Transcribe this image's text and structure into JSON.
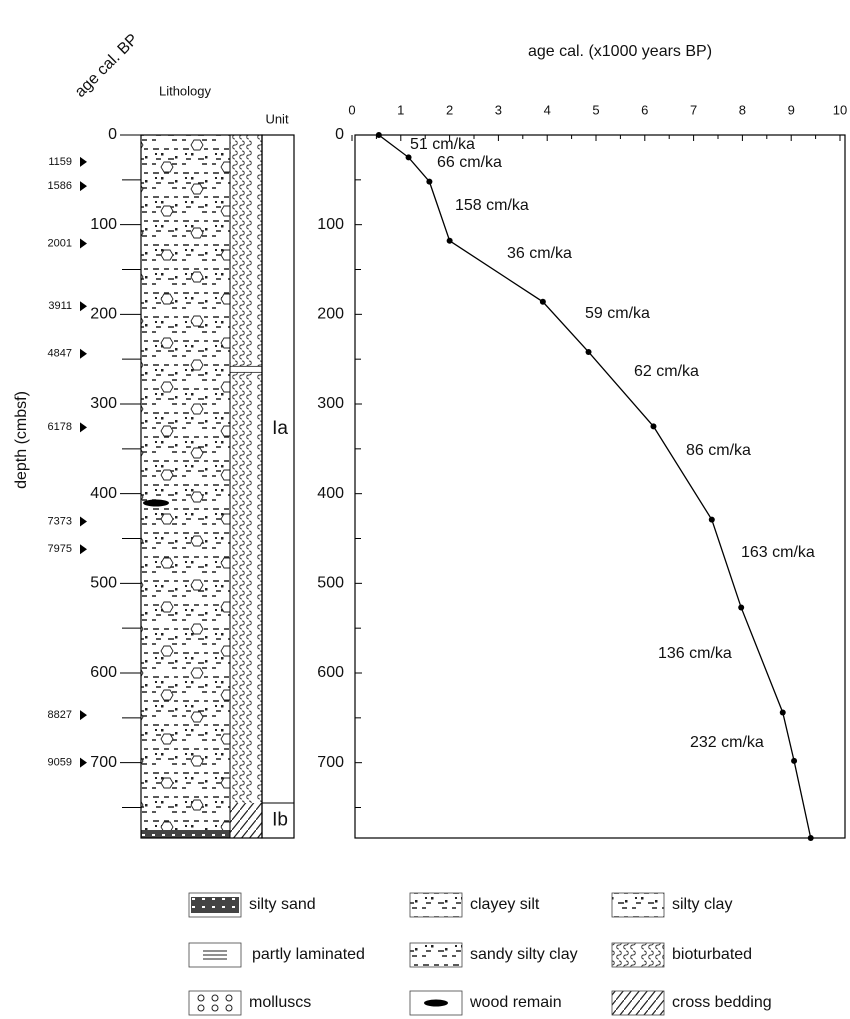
{
  "chart_data": {
    "type": "line",
    "title": "age cal. (x1000 years BP)",
    "y_label": "depth (cmbsf)",
    "x": [
      0.55,
      1.159,
      1.586,
      2.001,
      3.911,
      4.847,
      6.178,
      7.373,
      7.975,
      8.827,
      9.059,
      9.4
    ],
    "values": [
      0,
      25,
      52,
      118,
      186,
      242,
      325,
      429,
      527,
      644,
      698,
      784
    ],
    "color": "#000000",
    "xlim": [
      0,
      10
    ],
    "xticks": [
      0,
      1,
      2,
      3,
      4,
      5,
      6,
      7,
      8,
      9,
      10
    ],
    "ylim": [
      0,
      784
    ],
    "yticks": [
      0,
      100,
      200,
      300,
      400,
      500,
      600,
      700
    ],
    "segment_labels": [
      "51 cm/ka",
      "66 cm/ka",
      "158 cm/ka",
      "36 cm/ka",
      "59 cm/ka",
      "62 cm/ka",
      "86 cm/ka",
      "163 cm/ka",
      "136 cm/ka",
      "232 cm/ka"
    ]
  },
  "lithology": {
    "age_label": "age cal. BP",
    "title": "Lithology",
    "unit_label": "Unit",
    "age_markers": {
      "ages": [
        1159,
        1586,
        2001,
        3911,
        4847,
        6178,
        7373,
        7975,
        8827,
        9059
      ],
      "depths": [
        30,
        57,
        121,
        191,
        244,
        326,
        431,
        462,
        647,
        700
      ]
    },
    "units": [
      {
        "name": "Ia",
        "top": 0,
        "bottom": 745
      },
      {
        "name": "Ib",
        "top": 745,
        "bottom": 784
      }
    ]
  },
  "legend": [
    "silty sand",
    "clayey silt",
    "silty clay",
    "partly laminated",
    "sandy silty clay",
    "bioturbated",
    "molluscs",
    "wood remain",
    "cross bedding"
  ]
}
